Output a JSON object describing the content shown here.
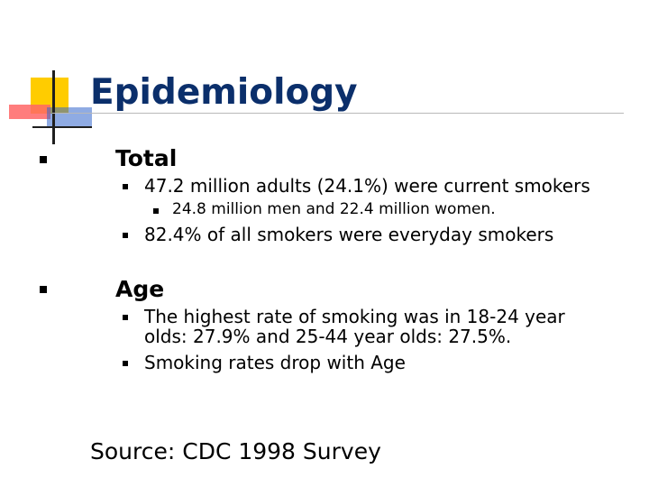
{
  "slide": {
    "title": "Epidemiology",
    "sections": [
      {
        "heading": "Total",
        "items": [
          {
            "text": "47.2 million adults (24.1%) were current smokers",
            "subitems": [
              "24.8 million men and 22.4 million women."
            ]
          },
          {
            "text": "82.4% of all smokers were everyday smokers"
          }
        ]
      },
      {
        "heading": "Age",
        "items": [
          {
            "text": "The highest rate of smoking was in 18-24 year olds: 27.9% and 25-44 year olds: 27.5%."
          },
          {
            "text": "Smoking rates drop with Age"
          }
        ]
      }
    ],
    "source": "Source: CDC 1998 Survey"
  },
  "colors": {
    "title": "#0b2f6b",
    "logo_yellow": "#ffcc00",
    "logo_red": "#ff6666",
    "logo_blue": "#3366cc"
  }
}
